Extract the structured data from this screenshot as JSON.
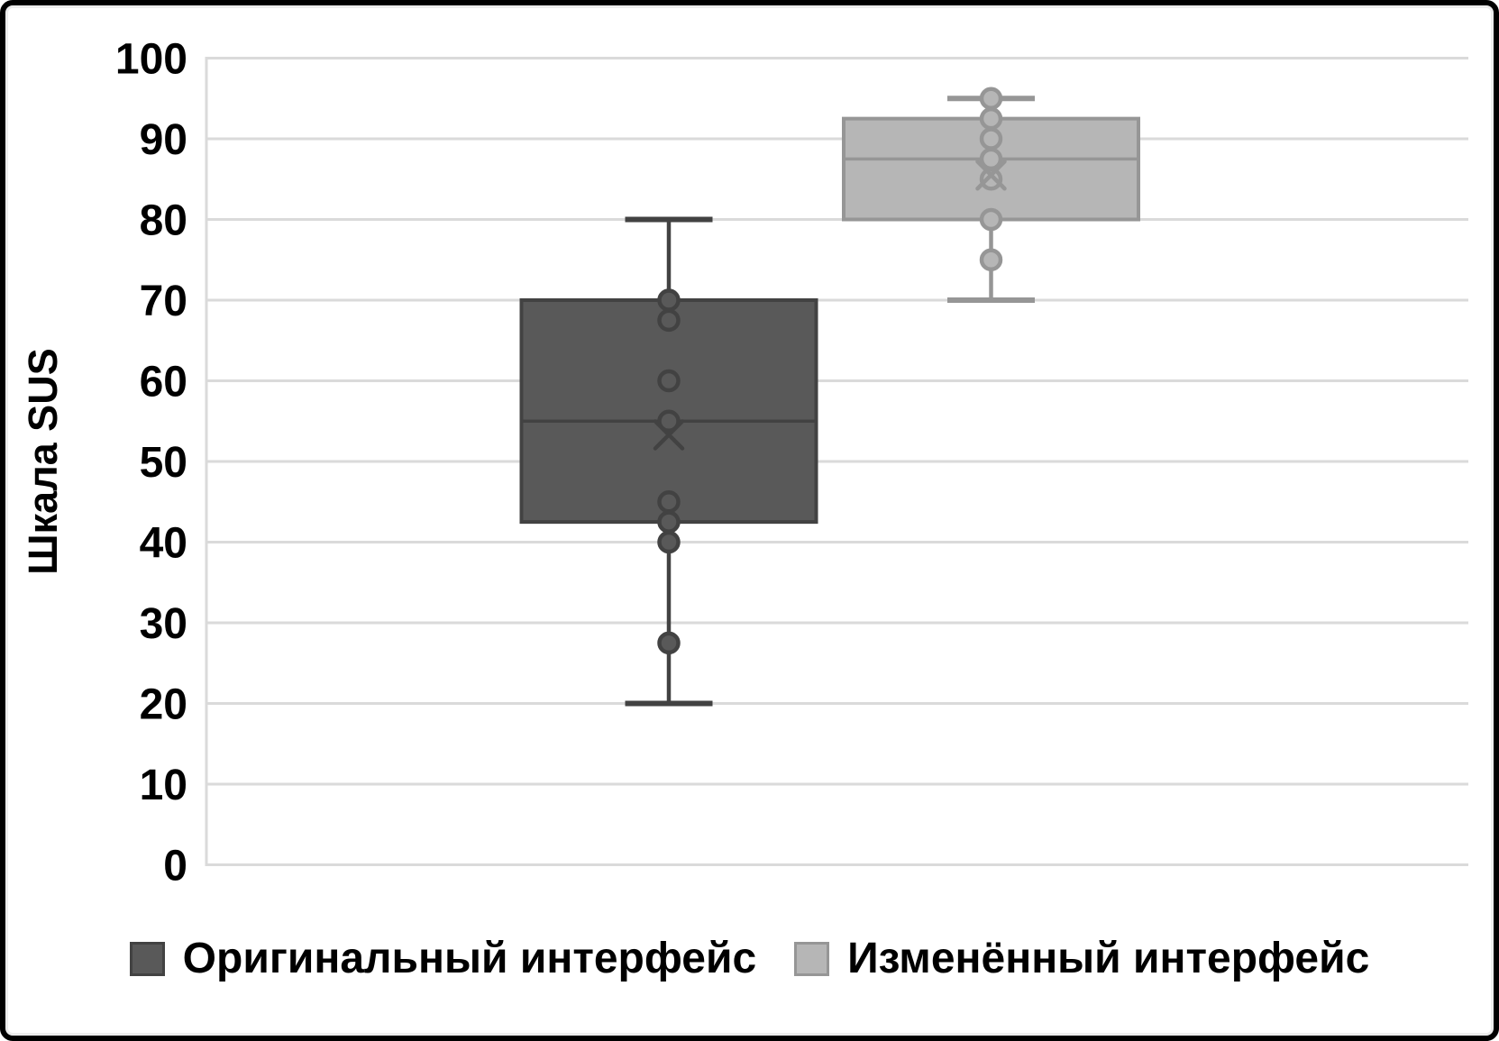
{
  "chart_data": {
    "type": "boxplot",
    "title": "",
    "ylabel": "Шкала SUS",
    "xlabel": "",
    "ylim": [
      0,
      100
    ],
    "ytick_values": [
      0,
      10,
      20,
      30,
      40,
      50,
      60,
      70,
      80,
      90,
      100
    ],
    "grid": "horizontal",
    "legend_position": "bottom",
    "series": [
      {
        "name": "Оригинальный интерфейс",
        "whisker_low": 20,
        "q1": 42.5,
        "median": 55,
        "q3": 70,
        "whisker_high": 80,
        "mean": 53.3,
        "points": [
          70,
          67.5,
          60,
          55,
          45,
          42.5,
          40,
          27.5
        ],
        "fill": "#595959",
        "stroke": "#424242"
      },
      {
        "name": "Изменённый интерфейс",
        "whisker_low": 70,
        "q1": 80,
        "median": 87.5,
        "q3": 92.5,
        "whisker_high": 95,
        "mean": 85.5,
        "points": [
          95,
          92.5,
          90,
          87.5,
          85,
          80,
          75
        ],
        "fill": "#b6b6b6",
        "stroke": "#969696"
      }
    ],
    "colors": {
      "gridline": "#dadada",
      "axis_line": "#dadada",
      "text": "#000000",
      "background": "#ffffff",
      "frame_border": "#000000"
    }
  },
  "legend": {
    "items": [
      {
        "label": "Оригинальный интерфейс"
      },
      {
        "label": "Изменённый интерфейс"
      }
    ]
  }
}
